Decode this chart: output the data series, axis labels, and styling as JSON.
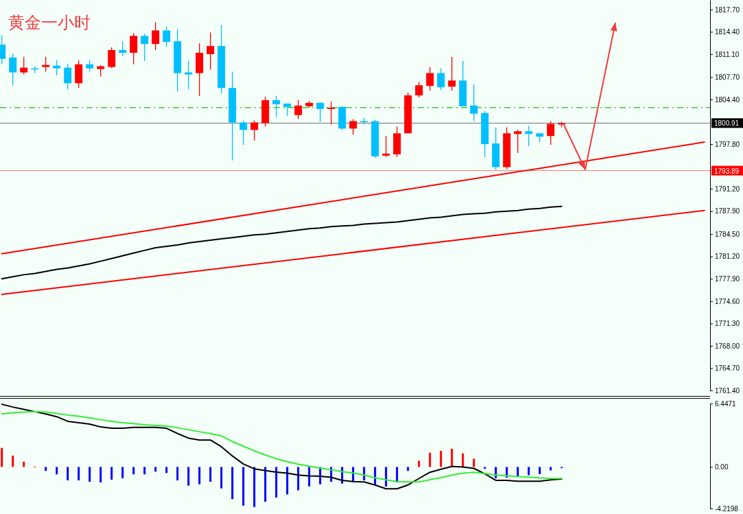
{
  "chart_data": [
    {
      "type": "candlestick",
      "title": "黄金一小时",
      "tick_labels": "y",
      "categories": [
        null,
        null,
        null,
        null,
        null,
        null,
        null,
        null,
        null,
        null,
        null,
        null,
        null,
        null,
        null,
        null,
        null,
        null,
        null,
        null,
        null,
        null,
        null,
        null,
        null,
        null,
        null,
        null,
        null,
        null,
        null,
        null,
        null,
        null,
        null,
        null,
        null,
        null,
        null,
        null,
        null,
        null,
        null,
        null,
        null,
        null,
        null,
        null,
        null,
        null,
        null,
        null,
        null,
        null,
        null,
        null,
        null,
        null,
        null,
        null,
        null,
        null,
        null,
        null,
        null
      ],
      "ohlc": [
        [
          1812.5,
          1813.9,
          1809.6,
          1810.4
        ],
        [
          1810.6,
          1811.2,
          1806.5,
          1808.4
        ],
        [
          1808.4,
          1810.7,
          1808.1,
          1809.1
        ],
        [
          1809.0,
          1809.3,
          1808.3,
          1809.0
        ],
        [
          1809.2,
          1810.7,
          1808.5,
          1809.5
        ],
        [
          1809.4,
          1810.2,
          1808.0,
          1809.0
        ],
        [
          1809.1,
          1809.7,
          1805.9,
          1806.8
        ],
        [
          1806.8,
          1810.2,
          1806.1,
          1809.6
        ],
        [
          1809.6,
          1810.2,
          1808.5,
          1809.0
        ],
        [
          1808.9,
          1809.5,
          1807.8,
          1809.3
        ],
        [
          1809.2,
          1812.1,
          1809.0,
          1811.7
        ],
        [
          1811.7,
          1813.0,
          1810.8,
          1811.3
        ],
        [
          1811.3,
          1814.2,
          1809.6,
          1813.8
        ],
        [
          1813.8,
          1814.1,
          1810.1,
          1812.6
        ],
        [
          1812.6,
          1815.8,
          1811.7,
          1814.6
        ],
        [
          1814.6,
          1815.2,
          1812.2,
          1812.9
        ],
        [
          1813.0,
          1814.8,
          1805.6,
          1808.3
        ],
        [
          1808.4,
          1810.1,
          1805.9,
          1808.1
        ],
        [
          1808.3,
          1812.7,
          1804.9,
          1811.3
        ],
        [
          1811.1,
          1814.3,
          1808.8,
          1812.3
        ],
        [
          1812.3,
          1815.4,
          1805.3,
          1806.1
        ],
        [
          1806.1,
          1808.5,
          1795.4,
          1801.0
        ],
        [
          1801.0,
          1801.3,
          1797.7,
          1799.9
        ],
        [
          1799.9,
          1801.3,
          1798.3,
          1801.0
        ],
        [
          1800.9,
          1804.8,
          1800.4,
          1804.3
        ],
        [
          1804.3,
          1804.9,
          1801.8,
          1803.7
        ],
        [
          1803.8,
          1803.8,
          1802.0,
          1803.3
        ],
        [
          1802.1,
          1804.3,
          1801.5,
          1803.5
        ],
        [
          1803.4,
          1804.2,
          1803.2,
          1803.9
        ],
        [
          1803.9,
          1804.0,
          1801.1,
          1803.0
        ],
        [
          1803.0,
          1804.1,
          1800.7,
          1803.2
        ],
        [
          1803.3,
          1803.4,
          1799.9,
          1800.1
        ],
        [
          1800.1,
          1801.5,
          1799.2,
          1801.2
        ],
        [
          1801.2,
          1801.7,
          1800.7,
          1801.2
        ],
        [
          1801.2,
          1801.4,
          1795.8,
          1796.0
        ],
        [
          1796.1,
          1799.0,
          1795.9,
          1796.4
        ],
        [
          1796.3,
          1800.4,
          1795.9,
          1799.4
        ],
        [
          1799.4,
          1805.4,
          1799.4,
          1805.0
        ],
        [
          1805.0,
          1807.0,
          1804.7,
          1806.5
        ],
        [
          1806.4,
          1809.2,
          1805.7,
          1808.3
        ],
        [
          1808.3,
          1809.0,
          1805.8,
          1806.2
        ],
        [
          1806.3,
          1810.7,
          1805.7,
          1807.2
        ],
        [
          1807.2,
          1810.1,
          1803.4,
          1803.4
        ],
        [
          1803.5,
          1806.6,
          1801.2,
          1802.3
        ],
        [
          1802.4,
          1802.7,
          1795.9,
          1797.8
        ],
        [
          1797.9,
          1800.3,
          1794.0,
          1794.4
        ],
        [
          1794.4,
          1800.3,
          1794.1,
          1799.4
        ],
        [
          1799.3,
          1799.9,
          1796.5,
          1799.7
        ],
        [
          1799.7,
          1800.5,
          1797.5,
          1799.3
        ],
        [
          1799.4,
          1799.4,
          1798.1,
          1798.9
        ],
        [
          1799.0,
          1801.2,
          1797.7,
          1800.8
        ],
        [
          1800.7,
          1801.1,
          1800.3,
          1800.9
        ],
        null,
        null,
        null,
        null,
        null,
        null,
        null,
        null,
        null,
        null,
        null,
        null,
        null
      ],
      "colors": [
        "#00bfff",
        "#00bfff",
        "#ff0000",
        "#00bfff",
        "#ff0000",
        "#00bfff",
        "#00bfff",
        "#ff0000",
        "#00bfff",
        "#ff0000",
        "#ff0000",
        "#00bfff",
        "#ff0000",
        "#00bfff",
        "#ff0000",
        "#00bfff",
        "#00bfff",
        "#00bfff",
        "#ff0000",
        "#ff0000",
        "#00bfff",
        "#00bfff",
        "#00bfff",
        "#ff0000",
        "#ff0000",
        "#00bfff",
        "#00bfff",
        "#ff0000",
        "#ff0000",
        "#00bfff",
        "#ff0000",
        "#00bfff",
        "#ff0000",
        "#00bfff",
        "#00bfff",
        "#ff0000",
        "#ff0000",
        "#ff0000",
        "#ff0000",
        "#ff0000",
        "#00bfff",
        "#ff0000",
        "#00bfff",
        "#00bfff",
        "#00bfff",
        "#00bfff",
        "#ff0000",
        "#ff0000",
        "#00bfff",
        "#00bfff",
        "#ff0000",
        "#ff0000",
        null,
        null,
        null,
        null,
        null,
        null,
        null,
        null,
        null,
        null,
        null,
        null,
        null
      ],
      "series": [
        {
          "type": "line",
          "color": "#000000",
          "values": [
            1777.9,
            1778.2,
            1778.5,
            1778.7,
            1779.0,
            1779.3,
            1779.5,
            1779.8,
            1780.1,
            1780.5,
            1780.9,
            1781.3,
            1781.7,
            1782.1,
            1782.5,
            1782.7,
            1782.9,
            1783.2,
            1783.4,
            1783.6,
            1783.8,
            1784.0,
            1784.2,
            1784.4,
            1784.5,
            1784.7,
            1784.9,
            1785.1,
            1785.3,
            1785.4,
            1785.6,
            1785.7,
            1785.8,
            1786.0,
            1786.1,
            1786.2,
            1786.3,
            1786.5,
            1786.7,
            1786.9,
            1787.0,
            1787.2,
            1787.4,
            1787.5,
            1787.6,
            1787.8,
            1787.9,
            1788.0,
            1788.2,
            1788.3,
            1788.5,
            1788.6,
            null,
            null,
            null,
            null,
            null,
            null,
            null,
            null,
            null,
            null,
            null,
            null,
            null
          ]
        },
        {
          "type": "line",
          "color": "#ff0000",
          "values": [
            1781.6,
            null,
            null,
            null,
            null,
            null,
            null,
            null,
            null,
            null,
            null,
            null,
            null,
            null,
            null,
            null,
            null,
            null,
            null,
            null,
            null,
            null,
            null,
            null,
            null,
            null,
            null,
            null,
            null,
            null,
            null,
            null,
            null,
            null,
            null,
            null,
            null,
            null,
            null,
            null,
            null,
            null,
            null,
            null,
            null,
            null,
            null,
            null,
            null,
            null,
            null,
            null,
            null,
            null,
            null,
            null,
            null,
            null,
            null,
            null,
            null,
            null,
            null,
            null,
            1798.1
          ]
        },
        {
          "type": "line",
          "color": "#ff0000",
          "values": [
            1775.6,
            null,
            null,
            null,
            null,
            null,
            null,
            null,
            null,
            null,
            null,
            null,
            null,
            null,
            null,
            null,
            null,
            null,
            null,
            null,
            null,
            null,
            null,
            null,
            null,
            null,
            null,
            null,
            null,
            null,
            null,
            null,
            null,
            null,
            null,
            null,
            null,
            null,
            null,
            null,
            null,
            null,
            null,
            null,
            null,
            null,
            null,
            null,
            null,
            null,
            null,
            null,
            null,
            null,
            null,
            null,
            null,
            null,
            null,
            null,
            null,
            null,
            null,
            null,
            1788.0
          ]
        }
      ],
      "ref_lines": [
        {
          "axis": "y",
          "value": 1803.2,
          "color": "#33cc33",
          "line_style": "dashed"
        },
        {
          "axis": "y",
          "value": 1800.91,
          "label": "1800.91",
          "color": "#000000"
        },
        {
          "axis": "y",
          "value": 1793.89,
          "label": "1793.89",
          "color": "#ff0000"
        }
      ],
      "ylim": [
        1761.4,
        1819.1
      ],
      "yticks": [
        {
          "value": 1817.7,
          "label": "1817.70"
        },
        {
          "value": 1814.4,
          "label": "1814.40"
        },
        {
          "value": 1811.1,
          "label": "1811.10"
        },
        {
          "value": 1807.7,
          "label": "1807.70"
        },
        {
          "value": 1804.4,
          "label": "1804.40"
        },
        {
          "value": 1797.8,
          "label": "1797.80"
        },
        {
          "value": 1791.2,
          "label": "1791.20"
        },
        {
          "value": 1787.9,
          "label": "1787.90"
        },
        {
          "value": 1784.5,
          "label": "1784.50"
        },
        {
          "value": 1781.2,
          "label": "1781.20"
        },
        {
          "value": 1777.9,
          "label": "1777.90"
        },
        {
          "value": 1774.6,
          "label": "1774.60"
        },
        {
          "value": 1771.3,
          "label": "1771.30"
        },
        {
          "value": 1768,
          "label": "1768.00"
        },
        {
          "value": 1764.7,
          "label": "1764.70"
        },
        {
          "value": 1761.4,
          "label": "1761.40"
        }
      ]
    },
    {
      "type": "bar",
      "tick_labels": "y",
      "categories": [
        null,
        null,
        null,
        null,
        null,
        null,
        null,
        null,
        null,
        null,
        null,
        null,
        null,
        null,
        null,
        null,
        null,
        null,
        null,
        null,
        null,
        null,
        null,
        null,
        null,
        null,
        null,
        null,
        null,
        null,
        null,
        null,
        null,
        null,
        null,
        null,
        null,
        null,
        null,
        null,
        null,
        null,
        null,
        null,
        null,
        null,
        null,
        null,
        null,
        null,
        null,
        null,
        null,
        null,
        null,
        null,
        null,
        null,
        null,
        null,
        null,
        null,
        null,
        null,
        null
      ],
      "series": [
        {
          "type": "bar",
          "colors": [
            "#ff0000",
            "#ff0000",
            "#ff0000",
            "#ff0000",
            "#0000ff",
            "#0000ff",
            "#0000ff",
            "#0000ff",
            "#0000ff",
            "#0000ff",
            "#0000ff",
            "#0000ff",
            "#0000ff",
            "#0000ff",
            "#0000ff",
            "#0000ff",
            "#0000ff",
            "#0000ff",
            "#0000ff",
            "#0000ff",
            "#0000ff",
            "#0000ff",
            "#0000ff",
            "#0000ff",
            "#0000ff",
            "#0000ff",
            "#0000ff",
            "#0000ff",
            "#0000ff",
            "#0000ff",
            "#0000ff",
            "#0000ff",
            "#0000ff",
            "#0000ff",
            "#0000ff",
            "#0000ff",
            "#0000ff",
            "#0000ff",
            "#ff0000",
            "#ff0000",
            "#ff0000",
            "#ff0000",
            "#ff0000",
            "#ff0000",
            "#0000ff",
            "#0000ff",
            "#0000ff",
            "#0000ff",
            "#0000ff",
            "#0000ff",
            "#0000ff",
            "#0000ff",
            null,
            null,
            null,
            null,
            null,
            null,
            null,
            null,
            null,
            null,
            null,
            null,
            null
          ],
          "values": [
            1.94,
            1.15,
            0.54,
            0.05,
            -0.4,
            -0.75,
            -1.36,
            -1.36,
            -1.5,
            -1.57,
            -1.29,
            -1.15,
            -0.75,
            -0.75,
            -0.47,
            -0.61,
            -1.36,
            -1.9,
            -1.76,
            -1.5,
            -2.18,
            -3.26,
            -3.93,
            -4.07,
            -3.54,
            -3.11,
            -2.79,
            -2.37,
            -1.97,
            -1.76,
            -1.5,
            -1.69,
            -1.55,
            -1.36,
            -1.83,
            -1.99,
            -1.57,
            -0.4,
            0.63,
            1.45,
            1.64,
            1.85,
            1.38,
            0.84,
            -0.19,
            -1.15,
            -1.08,
            -0.94,
            -0.84,
            -0.73,
            -0.35,
            -0.12,
            null,
            null,
            null,
            null,
            null,
            null,
            null,
            null,
            null,
            null,
            null,
            null,
            null
          ]
        },
        {
          "type": "line",
          "color": "#000000",
          "values": [
            6.37,
            6.09,
            5.85,
            5.62,
            5.39,
            5.11,
            4.64,
            4.5,
            4.36,
            4.07,
            3.93,
            3.93,
            4.03,
            4.03,
            4.03,
            3.93,
            3.4,
            2.93,
            2.74,
            2.74,
            2.06,
            1.12,
            0.3,
            -0.19,
            -0.37,
            -0.52,
            -0.63,
            -0.82,
            -0.91,
            -0.94,
            -1.05,
            -1.36,
            -1.48,
            -1.52,
            -1.83,
            -2.22,
            -2.22,
            -1.83,
            -1.17,
            -0.54,
            -0.23,
            0.05,
            0,
            -0.14,
            -0.7,
            -1.36,
            -1.36,
            -1.45,
            -1.45,
            -1.45,
            -1.31,
            -1.22,
            null,
            null,
            null,
            null,
            null,
            null,
            null,
            null,
            null,
            null,
            null,
            null,
            null
          ]
        },
        {
          "type": "line",
          "color": "#33ee33",
          "values": [
            5.39,
            5.5,
            5.57,
            5.62,
            5.57,
            5.43,
            5.27,
            5.15,
            4.99,
            4.8,
            4.64,
            4.5,
            4.4,
            4.29,
            4.22,
            4.17,
            3.98,
            3.79,
            3.58,
            3.4,
            3.16,
            2.58,
            2.11,
            1.64,
            1.22,
            0.84,
            0.54,
            0.28,
            0.09,
            -0.12,
            -0.28,
            -0.47,
            -0.61,
            -0.82,
            -1.1,
            -1.31,
            -1.48,
            -1.52,
            -1.52,
            -1.29,
            -1.08,
            -0.82,
            -0.63,
            -0.54,
            -0.66,
            -0.82,
            -0.89,
            -0.98,
            -1.03,
            -1.12,
            -1.17,
            -1.17,
            null,
            null,
            null,
            null,
            null,
            null,
            null,
            null,
            null,
            null,
            null,
            null,
            null
          ]
        }
      ],
      "ylim": [
        -4.2198,
        6.4471
      ],
      "yticks": [
        6.4471,
        {
          "value": 0,
          "label": "0.00"
        },
        -4.2198
      ]
    }
  ]
}
